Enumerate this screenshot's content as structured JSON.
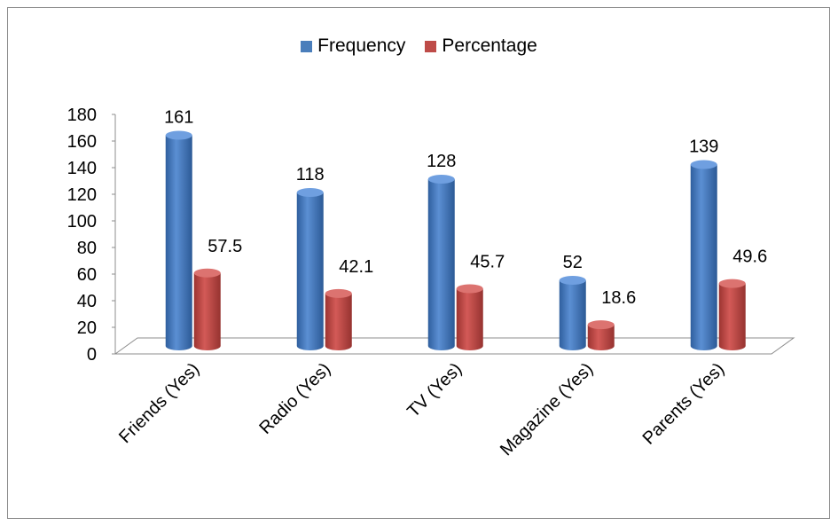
{
  "chart_data": {
    "type": "bar",
    "categories": [
      "Friends (Yes)",
      "Radio (Yes)",
      "TV (Yes)",
      "Magazine (Yes)",
      "Parents (Yes)"
    ],
    "series": [
      {
        "name": "Frequency",
        "values": [
          161,
          118,
          128,
          52,
          139
        ],
        "color": "#4a7ebb"
      },
      {
        "name": "Percentage",
        "values": [
          57.5,
          42.1,
          45.7,
          18.6,
          49.6
        ],
        "color": "#be4b48"
      }
    ],
    "ylim": [
      0,
      180
    ],
    "yticks": [
      0,
      20,
      40,
      60,
      80,
      100,
      120,
      140,
      160,
      180
    ],
    "legend_position": "top",
    "grid": false,
    "style": "3d-cylinder"
  }
}
